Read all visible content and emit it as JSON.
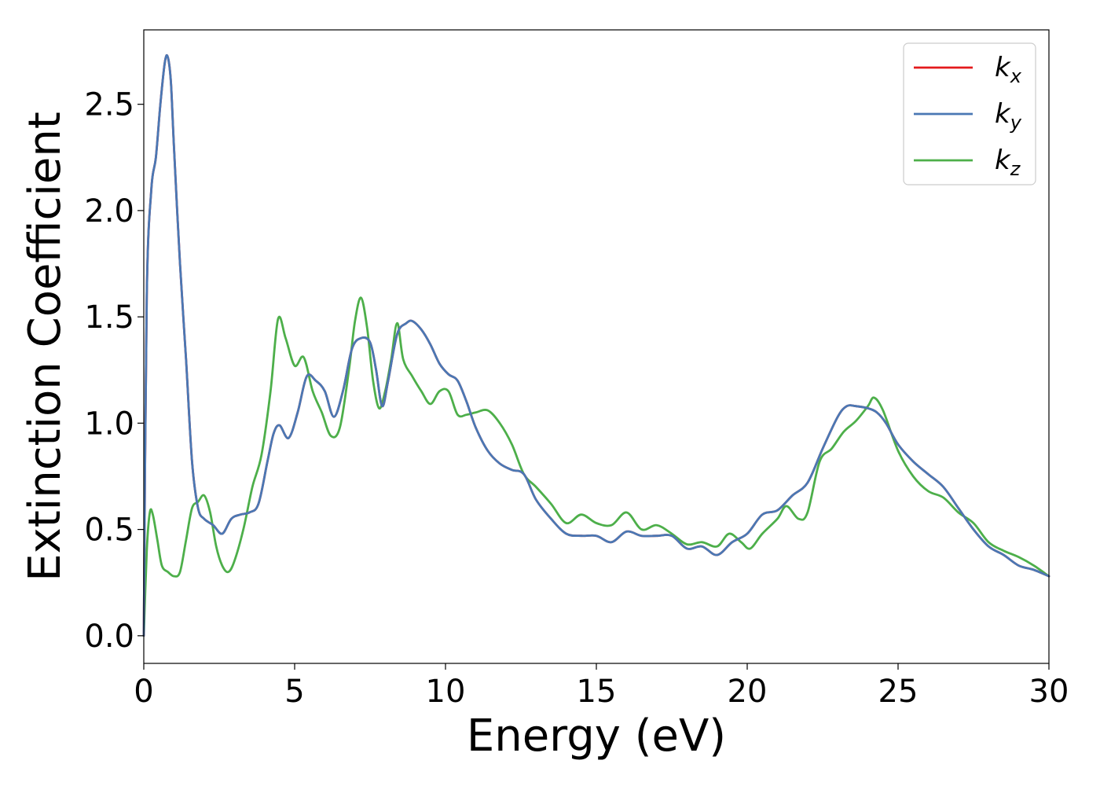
{
  "chart_data": {
    "type": "line",
    "title": "",
    "xlabel": "Energy (eV)",
    "ylabel": "Extinction Coefficient",
    "xlim": [
      0,
      30
    ],
    "ylim": [
      -0.13,
      2.85
    ],
    "xticks": [
      0,
      5,
      10,
      15,
      20,
      25,
      30
    ],
    "yticks": [
      "0.0",
      "0.5",
      "1.0",
      "1.5",
      "2.0",
      "2.5"
    ],
    "grid": false,
    "legend_position": "top-right",
    "series": [
      {
        "name": "k",
        "subscript": "x",
        "color": "#e41a1c",
        "x": [
          0,
          0.1,
          0.25,
          0.4,
          0.55,
          0.7,
          0.8,
          0.9,
          1.0,
          1.2,
          1.4,
          1.6,
          1.8,
          2.0,
          2.3,
          2.6,
          2.9,
          3.2,
          3.5,
          3.8,
          4.1,
          4.3,
          4.5,
          4.8,
          5.1,
          5.4,
          5.7,
          6.0,
          6.3,
          6.6,
          6.9,
          7.2,
          7.5,
          7.7,
          7.9,
          8.1,
          8.4,
          8.7,
          8.9,
          9.2,
          9.5,
          9.8,
          10.1,
          10.4,
          10.7,
          11.0,
          11.4,
          11.8,
          12.2,
          12.6,
          13.0,
          13.5,
          14.0,
          14.5,
          15.0,
          15.5,
          16.0,
          16.5,
          17.0,
          17.5,
          18.0,
          18.5,
          19.0,
          19.5,
          20.0,
          20.5,
          21.0,
          21.5,
          22.0,
          22.5,
          23.0,
          23.3,
          23.6,
          24.0,
          24.3,
          24.6,
          25.0,
          25.5,
          26.0,
          26.5,
          27.0,
          27.5,
          28.0,
          28.5,
          29.0,
          29.5,
          30.0
        ],
        "y": [
          0.0,
          1.6,
          2.1,
          2.25,
          2.5,
          2.7,
          2.72,
          2.6,
          2.3,
          1.75,
          1.3,
          0.82,
          0.6,
          0.55,
          0.52,
          0.48,
          0.55,
          0.57,
          0.58,
          0.62,
          0.82,
          0.95,
          0.99,
          0.93,
          1.05,
          1.22,
          1.2,
          1.15,
          1.03,
          1.15,
          1.35,
          1.4,
          1.38,
          1.25,
          1.08,
          1.2,
          1.42,
          1.47,
          1.48,
          1.44,
          1.37,
          1.28,
          1.23,
          1.2,
          1.1,
          0.98,
          0.87,
          0.81,
          0.78,
          0.76,
          0.64,
          0.55,
          0.48,
          0.47,
          0.47,
          0.44,
          0.49,
          0.47,
          0.47,
          0.47,
          0.41,
          0.42,
          0.38,
          0.44,
          0.48,
          0.57,
          0.59,
          0.66,
          0.72,
          0.88,
          1.03,
          1.08,
          1.08,
          1.07,
          1.05,
          1.0,
          0.9,
          0.82,
          0.76,
          0.7,
          0.6,
          0.5,
          0.42,
          0.38,
          0.33,
          0.31,
          0.28
        ]
      },
      {
        "name": "k",
        "subscript": "y",
        "color": "#4a78b4",
        "x": [
          0,
          0.1,
          0.25,
          0.4,
          0.55,
          0.7,
          0.8,
          0.9,
          1.0,
          1.2,
          1.4,
          1.6,
          1.8,
          2.0,
          2.3,
          2.6,
          2.9,
          3.2,
          3.5,
          3.8,
          4.1,
          4.3,
          4.5,
          4.8,
          5.1,
          5.4,
          5.7,
          6.0,
          6.3,
          6.6,
          6.9,
          7.2,
          7.5,
          7.7,
          7.9,
          8.1,
          8.4,
          8.7,
          8.9,
          9.2,
          9.5,
          9.8,
          10.1,
          10.4,
          10.7,
          11.0,
          11.4,
          11.8,
          12.2,
          12.6,
          13.0,
          13.5,
          14.0,
          14.5,
          15.0,
          15.5,
          16.0,
          16.5,
          17.0,
          17.5,
          18.0,
          18.5,
          19.0,
          19.5,
          20.0,
          20.5,
          21.0,
          21.5,
          22.0,
          22.5,
          23.0,
          23.3,
          23.6,
          24.0,
          24.3,
          24.6,
          25.0,
          25.5,
          26.0,
          26.5,
          27.0,
          27.5,
          28.0,
          28.5,
          29.0,
          29.5,
          30.0
        ],
        "y": [
          0.0,
          1.6,
          2.1,
          2.25,
          2.5,
          2.7,
          2.72,
          2.6,
          2.3,
          1.75,
          1.3,
          0.82,
          0.6,
          0.55,
          0.52,
          0.48,
          0.55,
          0.57,
          0.58,
          0.62,
          0.82,
          0.95,
          0.99,
          0.93,
          1.05,
          1.22,
          1.2,
          1.15,
          1.03,
          1.15,
          1.35,
          1.4,
          1.38,
          1.25,
          1.08,
          1.2,
          1.42,
          1.47,
          1.48,
          1.44,
          1.37,
          1.28,
          1.23,
          1.2,
          1.1,
          0.98,
          0.87,
          0.81,
          0.78,
          0.76,
          0.64,
          0.55,
          0.48,
          0.47,
          0.47,
          0.44,
          0.49,
          0.47,
          0.47,
          0.47,
          0.41,
          0.42,
          0.38,
          0.44,
          0.48,
          0.57,
          0.59,
          0.66,
          0.72,
          0.88,
          1.03,
          1.08,
          1.08,
          1.07,
          1.05,
          1.0,
          0.9,
          0.82,
          0.76,
          0.7,
          0.6,
          0.5,
          0.42,
          0.38,
          0.33,
          0.31,
          0.28
        ]
      },
      {
        "name": "k",
        "subscript": "z",
        "color": "#4daf4a",
        "x": [
          0,
          0.1,
          0.2,
          0.3,
          0.45,
          0.6,
          0.8,
          1.0,
          1.2,
          1.4,
          1.6,
          1.8,
          2.0,
          2.2,
          2.4,
          2.6,
          2.8,
          3.0,
          3.3,
          3.6,
          3.9,
          4.2,
          4.45,
          4.7,
          5.0,
          5.3,
          5.6,
          5.9,
          6.2,
          6.5,
          6.8,
          7.0,
          7.2,
          7.4,
          7.6,
          7.8,
          8.0,
          8.2,
          8.4,
          8.6,
          8.9,
          9.2,
          9.5,
          9.8,
          10.1,
          10.4,
          10.7,
          11.0,
          11.4,
          11.8,
          12.2,
          12.6,
          13.0,
          13.5,
          14.0,
          14.5,
          15.0,
          15.5,
          16.0,
          16.5,
          17.0,
          17.5,
          18.0,
          18.5,
          19.0,
          19.4,
          19.8,
          20.1,
          20.5,
          21.0,
          21.3,
          21.7,
          22.0,
          22.4,
          22.8,
          23.2,
          23.6,
          24.0,
          24.2,
          24.5,
          25.0,
          25.5,
          26.0,
          26.5,
          27.0,
          27.5,
          28.0,
          28.5,
          29.0,
          29.5,
          30.0
        ],
        "y": [
          0.0,
          0.4,
          0.58,
          0.57,
          0.45,
          0.33,
          0.3,
          0.28,
          0.3,
          0.45,
          0.6,
          0.63,
          0.66,
          0.58,
          0.42,
          0.33,
          0.3,
          0.35,
          0.5,
          0.7,
          0.85,
          1.15,
          1.49,
          1.4,
          1.27,
          1.31,
          1.15,
          1.05,
          0.94,
          0.98,
          1.25,
          1.48,
          1.59,
          1.45,
          1.2,
          1.07,
          1.15,
          1.3,
          1.47,
          1.3,
          1.22,
          1.15,
          1.09,
          1.15,
          1.15,
          1.04,
          1.04,
          1.05,
          1.06,
          1.0,
          0.9,
          0.76,
          0.7,
          0.62,
          0.53,
          0.57,
          0.53,
          0.52,
          0.58,
          0.5,
          0.52,
          0.48,
          0.43,
          0.44,
          0.42,
          0.48,
          0.44,
          0.41,
          0.48,
          0.55,
          0.61,
          0.55,
          0.58,
          0.82,
          0.88,
          0.96,
          1.01,
          1.08,
          1.12,
          1.06,
          0.87,
          0.75,
          0.68,
          0.65,
          0.58,
          0.53,
          0.44,
          0.4,
          0.37,
          0.33,
          0.28
        ]
      }
    ]
  }
}
